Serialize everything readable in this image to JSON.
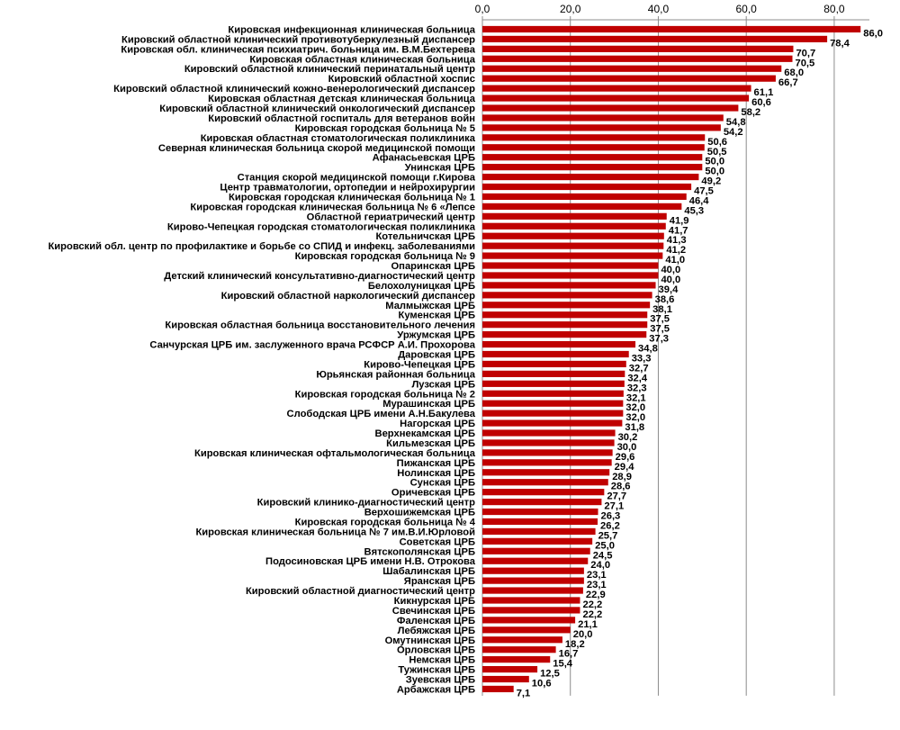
{
  "chart_data": {
    "type": "bar",
    "orientation": "horizontal",
    "title": "",
    "xlabel": "",
    "ylabel": "",
    "xlim": [
      0,
      88
    ],
    "x_ticks": [
      0,
      20,
      40,
      60,
      80
    ],
    "x_tick_labels": [
      "0,0",
      "20,0",
      "40,0",
      "60,0",
      "80,0"
    ],
    "x_axis_position": "top",
    "grid": "vertical",
    "legend": "none",
    "bar_color": "#c00000",
    "categories": [
      "Кировская инфекционная клиническая больница",
      "Кировский областной клинический противотуберкулезный диспансер",
      "Кировская обл. клиническая психиатрич. больница им. В.М.Бехтерева",
      "Кировская областная клиническая больница",
      "Кировский областной клинический перинатальный центр",
      "Кировский областной хоспис",
      "Кировский областной клинический кожно-венерологический диспансер",
      "Кировская областная детская клиническая больница",
      "Кировский областной клинический онкологический диспансер",
      "Кировский областной госпиталь для ветеранов войн",
      "Кировская городская больница № 5",
      "Кировская областная стоматологическая поликлиника",
      "Северная клиническая больница скорой медицинской помощи",
      "Афанасьевская ЦРБ",
      "Унинская ЦРБ",
      "Станция скорой медицинской помощи г.Кирова",
      "Центр травматологии, ортопедии и нейрохирургии",
      "Кировская городская клиническая больница № 1",
      "Кировская городская клиническая больница № 6 «Лепсе",
      "Областной гериатрический центр",
      "Кирово-Чепецкая городская стоматологическая поликлиника",
      "Котельничская ЦРБ",
      "Кировский обл. центр по профилактике и борьбе со СПИД и инфекц. заболеваниями",
      "Кировская городская больница № 9",
      "Опаринская ЦРБ",
      "Детский клинический консультативно-диагностический центр",
      "Белохолуницкая ЦРБ",
      "Кировский областной наркологический диспансер",
      "Малмыжская ЦРБ",
      "Куменская ЦРБ",
      "Кировская областная больница восстановительного лечения",
      "Уржумская ЦРБ",
      "Санчурская ЦРБ им. заслуженного врача РСФСР А.И. Прохорова",
      "Даровская ЦРБ",
      "Кирово-Чепецкая ЦРБ",
      "Юрьянская районная больница",
      "Лузская ЦРБ",
      "Кировская городская больница № 2",
      "Мурашинская ЦРБ",
      "Слободская ЦРБ имени А.Н.Бакулева",
      "Нагорская ЦРБ",
      "Верхнекамская ЦРБ",
      "Кильмезская ЦРБ",
      "Кировская клиническая офтальмологическая больница",
      "Пижанская ЦРБ",
      "Нолинская ЦРБ",
      "Сунская ЦРБ",
      "Оричевская ЦРБ",
      "Кировский клинико-диагностический центр",
      "Верхошижемская ЦРБ",
      "Кировская городская больница № 4",
      "Кировская клиническая больница № 7 им.В.И.Юрловой",
      "Советская ЦРБ",
      "Вятскополянская ЦРБ",
      "Подосиновская ЦРБ имени Н.В. Отрокова",
      "Шабалинская ЦРБ",
      "Яранская ЦРБ",
      "Кировский областной диагностический центр",
      "Кикнурская ЦРБ",
      "Свечинская ЦРБ",
      "Фаленская ЦРБ",
      "Лебяжская ЦРБ",
      "Омутнинская ЦРБ",
      "Орловская ЦРБ",
      "Немская ЦРБ",
      "Тужинская ЦРБ",
      "Зуевская ЦРБ",
      "Арбажская ЦРБ"
    ],
    "values": [
      86.0,
      78.4,
      70.7,
      70.5,
      68.0,
      66.7,
      61.1,
      60.6,
      58.2,
      54.8,
      54.2,
      50.6,
      50.5,
      50.0,
      50.0,
      49.2,
      47.5,
      46.4,
      45.3,
      41.9,
      41.7,
      41.3,
      41.2,
      41.0,
      40.0,
      40.0,
      39.4,
      38.6,
      38.1,
      37.5,
      37.5,
      37.3,
      34.8,
      33.3,
      32.7,
      32.4,
      32.3,
      32.1,
      32.0,
      32.0,
      31.8,
      30.2,
      30.0,
      29.6,
      29.4,
      28.9,
      28.6,
      27.7,
      27.1,
      26.3,
      26.2,
      25.7,
      25.0,
      24.5,
      24.0,
      23.1,
      23.1,
      22.9,
      22.2,
      22.2,
      21.1,
      20.0,
      18.2,
      16.7,
      15.4,
      12.5,
      10.6,
      7.1
    ],
    "value_labels": [
      "86,0",
      "78,4",
      "70,7",
      "70,5",
      "68,0",
      "66,7",
      "61,1",
      "60,6",
      "58,2",
      "54,8",
      "54,2",
      "50,6",
      "50,5",
      "50,0",
      "50,0",
      "49,2",
      "47,5",
      "46,4",
      "45,3",
      "41,9",
      "41,7",
      "41,3",
      "41,2",
      "41,0",
      "40,0",
      "40,0",
      "39,4",
      "38,6",
      "38,1",
      "37,5",
      "37,5",
      "37,3",
      "34,8",
      "33,3",
      "32,7",
      "32,4",
      "32,3",
      "32,1",
      "32,0",
      "32,0",
      "31,8",
      "30,2",
      "30,0",
      "29,6",
      "29,4",
      "28,9",
      "28,6",
      "27,7",
      "27,1",
      "26,3",
      "26,2",
      "25,7",
      "25,0",
      "24,5",
      "24,0",
      "23,1",
      "23,1",
      "22,9",
      "22,2",
      "22,2",
      "21,1",
      "20,0",
      "18,2",
      "16,7",
      "15,4",
      "12,5",
      "10,6",
      "7,1"
    ]
  }
}
